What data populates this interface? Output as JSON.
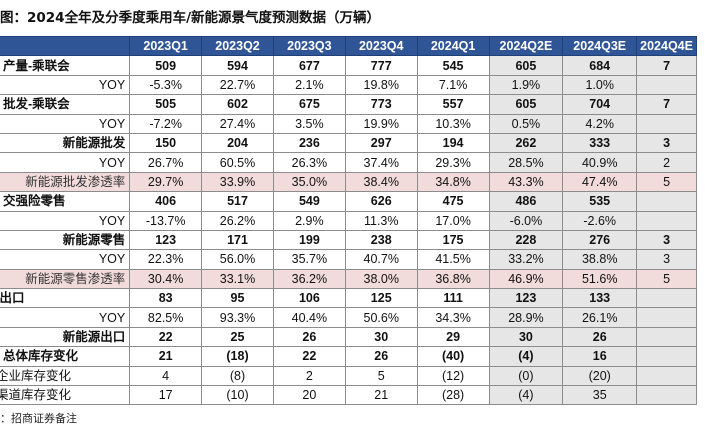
{
  "title": "图：2024全年及分季度乘用车/新能源景气度预测数据（万辆）",
  "headers": [
    "",
    "2023Q1",
    "2023Q2",
    "2023Q3",
    "2023Q4",
    "2024Q1",
    "2024Q2E",
    "2024Q3E",
    "2024Q4E"
  ],
  "rows": [
    {
      "label": ". 产量-乘联会",
      "style": "bold-left",
      "values": [
        "509",
        "594",
        "677",
        "777",
        "545",
        "605",
        "684",
        "7"
      ]
    },
    {
      "label": "YOY",
      "style": "sub",
      "values": [
        "-5.3%",
        "22.7%",
        "2.1%",
        "19.8%",
        "7.1%",
        "1.9%",
        "1.0%",
        ""
      ]
    },
    {
      "label": ". 批发-乘联会",
      "style": "bold-left",
      "values": [
        "505",
        "602",
        "675",
        "773",
        "557",
        "605",
        "704",
        "7"
      ]
    },
    {
      "label": "YOY",
      "style": "sub",
      "values": [
        "-7.2%",
        "27.4%",
        "3.5%",
        "19.9%",
        "10.3%",
        "0.5%",
        "4.2%",
        ""
      ]
    },
    {
      "label": "新能源批发",
      "style": "bold-mid",
      "values": [
        "150",
        "204",
        "236",
        "297",
        "194",
        "262",
        "333",
        "3"
      ]
    },
    {
      "label": "YOY",
      "style": "sub",
      "values": [
        "26.7%",
        "60.5%",
        "26.3%",
        "37.4%",
        "29.3%",
        "28.5%",
        "40.9%",
        "2"
      ]
    },
    {
      "label": "新能源批发渗透率",
      "style": "pink",
      "values": [
        "29.7%",
        "33.9%",
        "35.0%",
        "38.4%",
        "34.8%",
        "43.3%",
        "47.4%",
        "5"
      ]
    },
    {
      "label": ". 交强险零售",
      "style": "bold-left",
      "values": [
        "406",
        "517",
        "549",
        "626",
        "475",
        "486",
        "535",
        ""
      ]
    },
    {
      "label": "YOY",
      "style": "sub",
      "values": [
        "-13.7%",
        "26.2%",
        "2.9%",
        "11.3%",
        "17.0%",
        "-6.0%",
        "-2.6%",
        ""
      ]
    },
    {
      "label": "新能源零售",
      "style": "bold-mid",
      "values": [
        "123",
        "171",
        "199",
        "238",
        "175",
        "228",
        "276",
        "3"
      ]
    },
    {
      "label": "YOY",
      "style": "sub",
      "values": [
        "22.3%",
        "56.0%",
        "35.7%",
        "40.7%",
        "41.5%",
        "33.2%",
        "38.8%",
        "3"
      ]
    },
    {
      "label": "新能源零售渗透率",
      "style": "pink",
      "values": [
        "30.4%",
        "33.1%",
        "36.2%",
        "38.0%",
        "36.8%",
        "46.9%",
        "51.6%",
        "5"
      ]
    },
    {
      "label": ".出口",
      "style": "bold-left",
      "values": [
        "83",
        "95",
        "106",
        "125",
        "111",
        "123",
        "133",
        ""
      ]
    },
    {
      "label": "YOY",
      "style": "sub",
      "values": [
        "82.5%",
        "93.3%",
        "40.4%",
        "50.6%",
        "34.3%",
        "28.9%",
        "26.1%",
        ""
      ]
    },
    {
      "label": "新能源出口",
      "style": "bold-mid",
      "values": [
        "22",
        "25",
        "26",
        "30",
        "29",
        "30",
        "26",
        ""
      ]
    },
    {
      "label": ". 总体库存变化",
      "style": "bold-left",
      "values": [
        "21",
        "(18)",
        "22",
        "26",
        "(40)",
        "(4)",
        "16",
        ""
      ]
    },
    {
      "label": "企业库存变化",
      "style": "plain-left",
      "values": [
        "4",
        "(8)",
        "2",
        "5",
        "(12)",
        "(0)",
        "(20)",
        ""
      ]
    },
    {
      "label": "渠道库存变化",
      "style": "plain-left",
      "values": [
        "17",
        "(10)",
        "20",
        "21",
        "(28)",
        "(4)",
        "35",
        ""
      ]
    }
  ],
  "source": "：招商证券备注"
}
